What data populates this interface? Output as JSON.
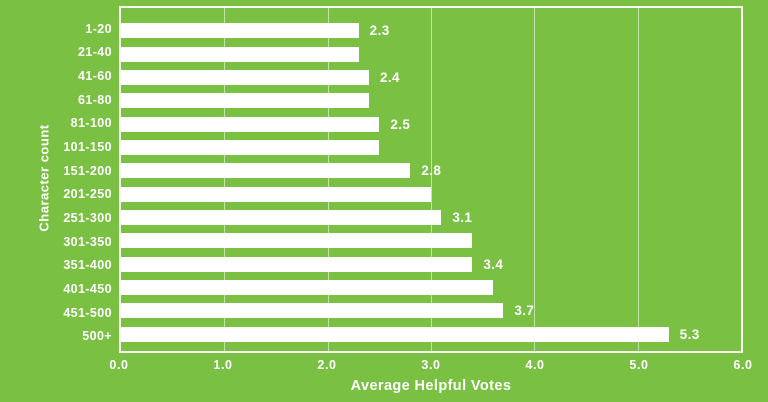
{
  "chart_data": {
    "type": "bar",
    "orientation": "horizontal",
    "title": "",
    "xlabel": "Average Helpful Votes",
    "ylabel": "Character count",
    "xlim": [
      0,
      6
    ],
    "xticks": [
      "0.0",
      "1.0",
      "2.0",
      "3.0",
      "4.0",
      "5.0",
      "6.0"
    ],
    "categories": [
      "1-20",
      "21-40",
      "41-60",
      "61-80",
      "81-100",
      "101-150",
      "151-200",
      "201-250",
      "251-300",
      "301-350",
      "351-400",
      "401-450",
      "451-500",
      "500+"
    ],
    "values": [
      2.3,
      2.3,
      2.4,
      2.4,
      2.5,
      2.5,
      2.8,
      3.0,
      3.1,
      3.4,
      3.4,
      3.6,
      3.7,
      5.3
    ],
    "value_labels": [
      "2.3",
      "",
      "2.4",
      "",
      "2.5",
      "",
      "2.8",
      "",
      "3.1",
      "",
      "3.4",
      "",
      "3.7",
      "5.3"
    ],
    "grid": "vertical",
    "legend": "none",
    "colors": {
      "background": "#7ac143",
      "bar": "#ffffff",
      "gridline": "rgba(255,255,255,0.55)",
      "border": "rgba(255,255,255,0.95)",
      "text": "#ffffff"
    }
  }
}
